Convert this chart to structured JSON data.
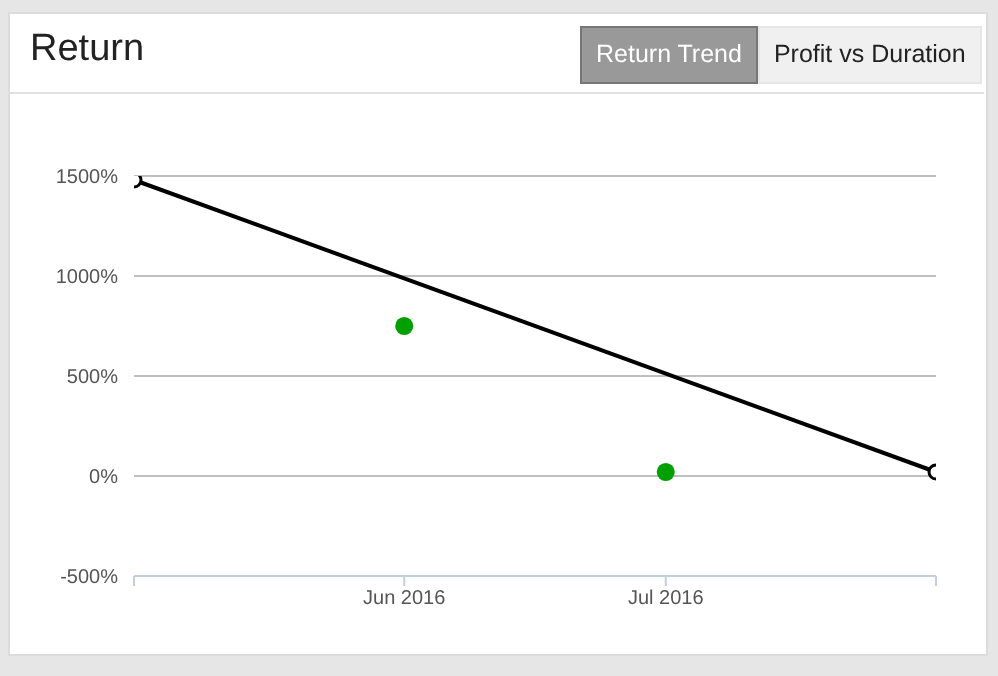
{
  "chart_data": {
    "type": "line",
    "title": "Return",
    "annotations": [
      "Return Trend",
      "Profit vs Duration"
    ],
    "xlim": [
      "2016-05",
      "2016-08"
    ],
    "xticks": [
      {
        "value": "2016-05",
        "label": null
      },
      {
        "value": "2016-06",
        "label": "Jun 2016"
      },
      {
        "value": "2016-07",
        "label": "Jul 2016"
      },
      {
        "value": "2016-08",
        "label": null
      }
    ],
    "ylim": [
      -500,
      1500
    ],
    "yticks": [
      {
        "value": -500,
        "label": "-500%"
      },
      {
        "value": 0,
        "label": "0%"
      },
      {
        "value": 500,
        "label": "500%"
      },
      {
        "value": 1000,
        "label": "1000%"
      },
      {
        "value": 1500,
        "label": "1500%"
      }
    ],
    "grid": "y",
    "marker": "circle",
    "line_style": "solid",
    "series": [
      {
        "color": "#000000",
        "x": [
          "2016-05",
          "2016-08"
        ],
        "values": [
          1480,
          20
        ]
      },
      {
        "type": "scatter",
        "color": "#00a000",
        "x": [
          "2016-06",
          "2016-07"
        ],
        "values": [
          750,
          20
        ]
      }
    ]
  }
}
